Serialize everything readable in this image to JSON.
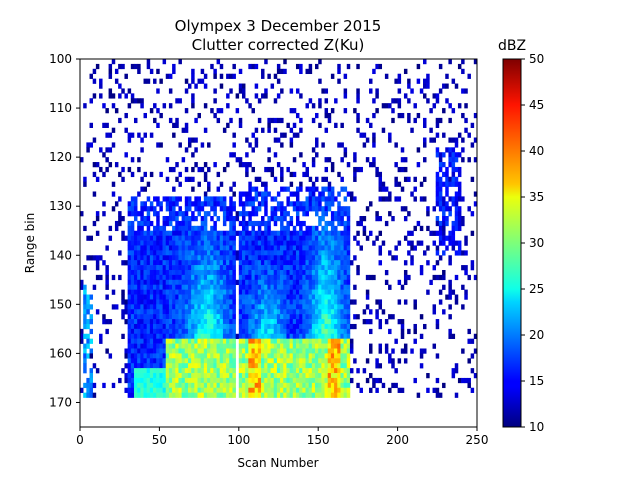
{
  "chart_data": {
    "type": "heatmap",
    "title": "Olympex 3 December 2015",
    "subtitle": "Clutter corrected Z(Ku)",
    "xlabel": "Scan Number",
    "ylabel": "Range bin",
    "xlim": [
      0,
      250
    ],
    "ylim": [
      175,
      100
    ],
    "y_inverted": true,
    "x_ticks": [
      0,
      50,
      100,
      150,
      200,
      250
    ],
    "y_ticks": [
      100,
      110,
      120,
      130,
      140,
      150,
      160,
      170
    ],
    "colorbar": {
      "label": "dBZ",
      "colormap": "jet",
      "range": [
        10,
        50
      ],
      "ticks": [
        10,
        15,
        20,
        25,
        30,
        35,
        40,
        45,
        50
      ]
    },
    "grid": false,
    "description_of_field": [
      {
        "region": "scattered noise",
        "x": [
          0,
          250
        ],
        "y": [
          100,
          170
        ],
        "dbz": [
          10,
          14
        ]
      },
      {
        "region": "main echo column A",
        "x": [
          35,
          95
        ],
        "y": [
          128,
          169
        ],
        "dbz": [
          14,
          28
        ]
      },
      {
        "region": "main echo column B",
        "x": [
          100,
          170
        ],
        "y": [
          126,
          169
        ],
        "dbz": [
          14,
          28
        ]
      },
      {
        "region": "bright band",
        "x": [
          55,
          170
        ],
        "y": [
          157,
          169
        ],
        "dbz": [
          28,
          42
        ]
      },
      {
        "region": "isolated echo",
        "x": [
          225,
          240
        ],
        "y": [
          118,
          140
        ],
        "dbz": [
          13,
          18
        ]
      }
    ]
  }
}
